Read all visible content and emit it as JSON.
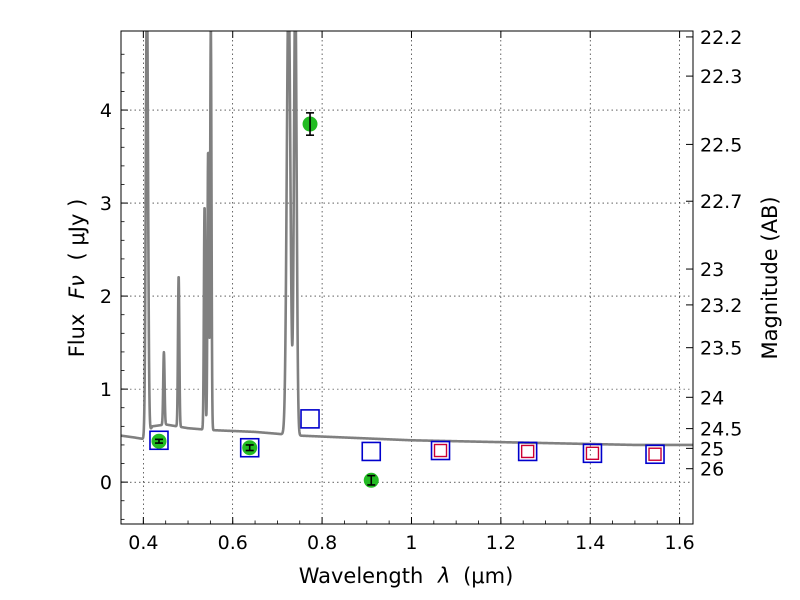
{
  "chart_data": {
    "type": "scatter",
    "xlabel_text": "Wavelength",
    "xlabel_symbol": "λ",
    "xlabel_unit": "(μm)",
    "ylabel_text": "Flux",
    "ylabel_symbol": "Fν",
    "ylabel_unit": "( μJy )",
    "y2label": "Magnitude (AB)",
    "xlim": [
      0.35,
      1.63
    ],
    "ylim": [
      -0.45,
      4.85
    ],
    "grid": true,
    "x_ticks": [
      {
        "value": 0.4,
        "label": "0.4"
      },
      {
        "value": 0.6,
        "label": "0.6"
      },
      {
        "value": 0.8,
        "label": "0.8"
      },
      {
        "value": 1.0,
        "label": "1"
      },
      {
        "value": 1.2,
        "label": "1.2"
      },
      {
        "value": 1.4,
        "label": "1.4"
      },
      {
        "value": 1.6,
        "label": "1.6"
      }
    ],
    "y_ticks": [
      {
        "value": 0,
        "label": "0"
      },
      {
        "value": 1,
        "label": "1"
      },
      {
        "value": 2,
        "label": "2"
      },
      {
        "value": 3,
        "label": "3"
      },
      {
        "value": 4,
        "label": "4"
      }
    ],
    "y2_ticks": [
      {
        "value": 22.2,
        "label": "22.2"
      },
      {
        "value": 22.3,
        "label": "22.3"
      },
      {
        "value": 22.5,
        "label": "22.5"
      },
      {
        "value": 22.7,
        "label": "22.7"
      },
      {
        "value": 23.0,
        "label": "23"
      },
      {
        "value": 23.2,
        "label": "23.2"
      },
      {
        "value": 23.5,
        "label": "23.5"
      },
      {
        "value": 24.0,
        "label": "24"
      },
      {
        "value": 24.5,
        "label": "24.5"
      },
      {
        "value": 25.0,
        "label": "25"
      },
      {
        "value": 26.0,
        "label": "26"
      }
    ],
    "colors": {
      "spectrum": "#808080",
      "observed": "#22bb22",
      "model_blue": "#0000cc",
      "model_red": "#cc0033"
    },
    "spectrum": {
      "continuum": [
        [
          0.35,
          0.5
        ],
        [
          0.38,
          0.48
        ],
        [
          0.405,
          0.46
        ],
        [
          0.42,
          0.6
        ],
        [
          0.45,
          0.62
        ],
        [
          0.5,
          0.58
        ],
        [
          0.55,
          0.56
        ],
        [
          0.6,
          0.55
        ],
        [
          0.65,
          0.54
        ],
        [
          0.7,
          0.52
        ],
        [
          0.72,
          0.51
        ],
        [
          0.75,
          0.5
        ],
        [
          0.8,
          0.49
        ],
        [
          0.85,
          0.48
        ],
        [
          0.9,
          0.47
        ],
        [
          0.95,
          0.46
        ],
        [
          1.0,
          0.45
        ],
        [
          1.1,
          0.44
        ],
        [
          1.2,
          0.43
        ],
        [
          1.3,
          0.42
        ],
        [
          1.4,
          0.41
        ],
        [
          1.5,
          0.4
        ],
        [
          1.63,
          0.4
        ]
      ],
      "lines": [
        {
          "x": 0.408,
          "peak": 4.85,
          "width": 0.0025
        },
        {
          "x": 0.446,
          "peak": 0.78,
          "width": 0.0015
        },
        {
          "x": 0.479,
          "peak": 1.62,
          "width": 0.0015
        },
        {
          "x": 0.537,
          "peak": 2.4,
          "width": 0.0015
        },
        {
          "x": 0.545,
          "peak": 3.0,
          "width": 0.0015
        },
        {
          "x": 0.551,
          "peak": 4.33,
          "width": 0.0015
        },
        {
          "x": 0.725,
          "peak": 4.85,
          "width": 0.004
        },
        {
          "x": 0.74,
          "peak": 4.85,
          "width": 0.003
        }
      ]
    },
    "observed": [
      {
        "x": 0.435,
        "y": 0.44,
        "err": 0.02
      },
      {
        "x": 0.638,
        "y": 0.37,
        "err": 0.03
      },
      {
        "x": 0.773,
        "y": 3.85,
        "err": 0.12
      },
      {
        "x": 0.91,
        "y": 0.02,
        "err": 0.05
      }
    ],
    "model_blue": [
      {
        "x": 0.435,
        "y": 0.45
      },
      {
        "x": 0.638,
        "y": 0.37
      },
      {
        "x": 0.773,
        "y": 0.68
      },
      {
        "x": 0.91,
        "y": 0.33
      },
      {
        "x": 1.065,
        "y": 0.34
      },
      {
        "x": 1.26,
        "y": 0.33
      },
      {
        "x": 1.405,
        "y": 0.31
      },
      {
        "x": 1.545,
        "y": 0.3
      }
    ],
    "model_red": [
      {
        "x": 1.065,
        "y": 0.34
      },
      {
        "x": 1.26,
        "y": 0.33
      },
      {
        "x": 1.405,
        "y": 0.31
      },
      {
        "x": 1.545,
        "y": 0.3
      }
    ]
  }
}
